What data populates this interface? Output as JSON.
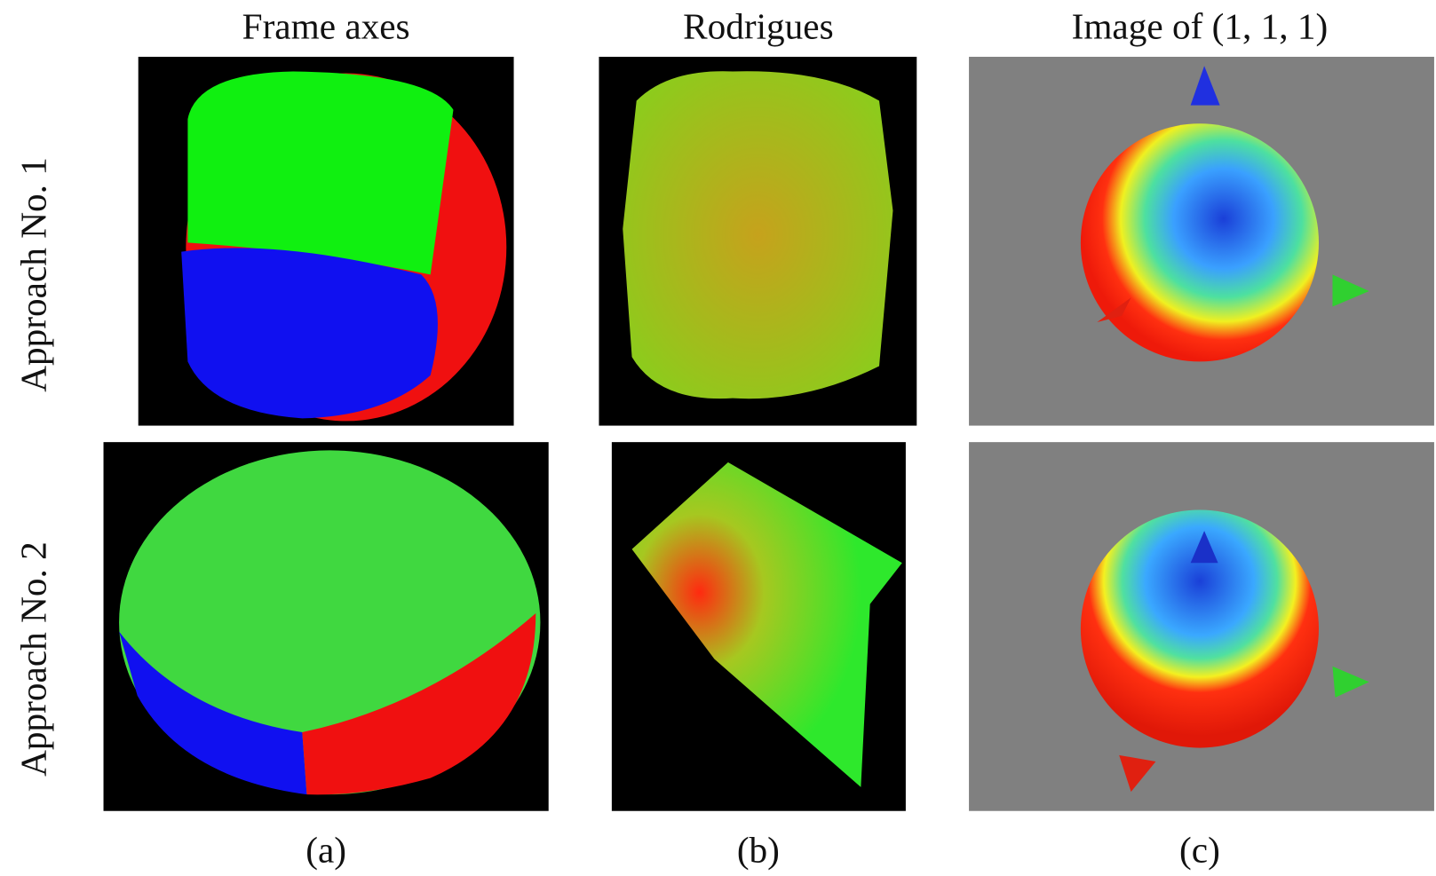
{
  "columns": [
    {
      "title": "Frame axes",
      "caption": "(a)"
    },
    {
      "title": "Rodrigues",
      "caption": "(b)"
    },
    {
      "title": "Image of (1, 1, 1)",
      "caption": "(c)"
    }
  ],
  "rows": [
    {
      "label": "Approach No. 1"
    },
    {
      "label": "Approach No. 2"
    }
  ]
}
